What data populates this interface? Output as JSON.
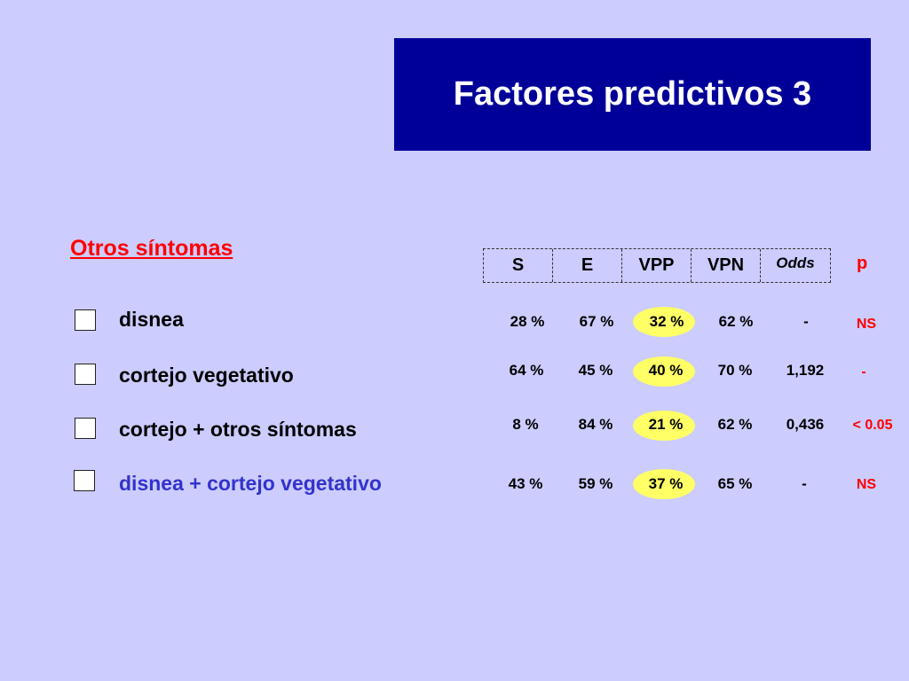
{
  "title": "Factores predictivos 3",
  "section_title": "Otros síntomas",
  "columns": [
    "S",
    "E",
    "VPP",
    "VPN",
    "Odds"
  ],
  "p_header": "p",
  "rows": [
    {
      "label": "disnea",
      "values": [
        "28 %",
        "67 %",
        "32 %",
        "62 %",
        "-"
      ],
      "p": "NS"
    },
    {
      "label": "cortejo vegetativo",
      "values": [
        "64 %",
        "45 %",
        "40 %",
        "70 %",
        "1,192"
      ],
      "p": "-"
    },
    {
      "label": "cortejo + otros síntomas",
      "values": [
        "8 %",
        "84 %",
        "21 %",
        "62 %",
        "0,436"
      ],
      "p": "< 0.05"
    },
    {
      "label": "disnea + cortejo vegetativo",
      "values": [
        "43 %",
        "59 %",
        "37 %",
        "65 %",
        "-"
      ],
      "p": "NS"
    }
  ],
  "colors": {
    "background": "#ccccff",
    "title_box": "#000099",
    "accent_red": "#ff0000",
    "highlight_yellow": "#ffff66",
    "blue_label": "#3333cc"
  }
}
